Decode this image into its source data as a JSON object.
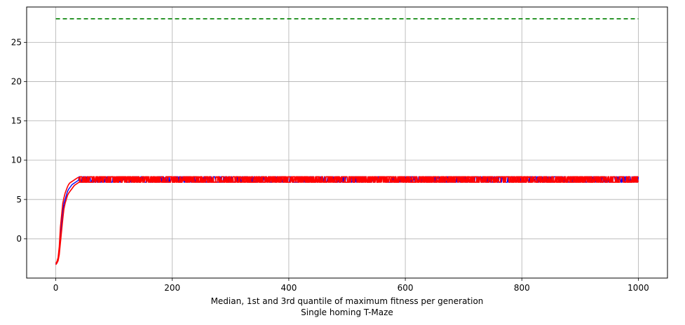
{
  "chart_data": {
    "type": "line",
    "title": "",
    "xlabel": "Median, 1st and 3rd quantile of maximum fitness per generation",
    "xlabel_line2": "Single homing T-Maze",
    "ylabel": "",
    "xlim": [
      -50,
      1050
    ],
    "ylim": [
      -5,
      29.5
    ],
    "xticks": [
      0,
      200,
      400,
      600,
      800,
      1000
    ],
    "yticks": [
      0,
      5,
      10,
      15,
      20,
      25
    ],
    "xtick_labels": [
      "0",
      "200",
      "400",
      "600",
      "800",
      "1000"
    ],
    "ytick_labels": [
      "0",
      "5",
      "10",
      "15",
      "20",
      "25"
    ],
    "grid": true,
    "legend": "none",
    "colors": {
      "reference": "#008000",
      "median": "#0000ff",
      "quantiles": "#ff0000",
      "grid": "#b0b0b0"
    },
    "series": [
      {
        "role": "reference",
        "style": "dashed",
        "x": [
          0,
          1000
        ],
        "values": [
          28,
          28
        ]
      },
      {
        "role": "median",
        "style": "solid",
        "x": [
          0,
          2,
          4,
          6,
          8,
          10,
          12,
          14,
          16,
          18,
          20,
          22,
          24,
          26,
          28,
          30,
          32,
          34,
          36,
          38,
          40,
          45,
          50,
          60,
          80,
          100,
          150,
          200,
          300,
          400,
          500,
          600,
          700,
          800,
          900,
          1000
        ],
        "values": [
          -3.2,
          -3.0,
          -2.6,
          -1.5,
          0.5,
          2.0,
          3.5,
          4.5,
          5.0,
          5.5,
          6.0,
          6.3,
          6.5,
          6.7,
          6.9,
          7.0,
          7.1,
          7.2,
          7.3,
          7.4,
          7.5,
          7.5,
          7.5,
          7.5,
          7.5,
          7.5,
          7.5,
          7.5,
          7.5,
          7.5,
          7.5,
          7.5,
          7.5,
          7.5,
          7.5,
          7.5
        ],
        "oscillation": [
          7.2,
          7.9
        ]
      },
      {
        "role": "first-quantile",
        "style": "solid",
        "x": [
          0,
          2,
          4,
          6,
          8,
          10,
          12,
          14,
          16,
          18,
          20,
          22,
          24,
          26,
          28,
          30,
          32,
          34,
          36,
          38,
          40,
          45,
          50,
          60,
          80,
          100,
          150,
          200,
          300,
          400,
          500,
          600,
          700,
          800,
          900,
          1000
        ],
        "values": [
          -3.3,
          -3.1,
          -2.8,
          -2.0,
          -0.5,
          1.0,
          2.5,
          3.8,
          4.5,
          5.0,
          5.5,
          5.8,
          6.0,
          6.2,
          6.4,
          6.6,
          6.8,
          6.9,
          7.0,
          7.1,
          7.2,
          7.3,
          7.4,
          7.4,
          7.4,
          7.4,
          7.4,
          7.4,
          7.4,
          7.4,
          7.4,
          7.4,
          7.4,
          7.4,
          7.4,
          7.4
        ],
        "oscillation": [
          7.2,
          7.9
        ]
      },
      {
        "role": "third-quantile",
        "style": "solid",
        "x": [
          0,
          2,
          4,
          6,
          8,
          10,
          12,
          14,
          16,
          18,
          20,
          22,
          24,
          26,
          28,
          30,
          32,
          34,
          36,
          38,
          40,
          45,
          50,
          60,
          80,
          100,
          150,
          200,
          300,
          400,
          500,
          600,
          700,
          800,
          900,
          1000
        ],
        "values": [
          -3.1,
          -2.9,
          -2.4,
          -1.0,
          1.5,
          3.0,
          4.5,
          5.2,
          5.8,
          6.2,
          6.6,
          6.9,
          7.1,
          7.2,
          7.3,
          7.4,
          7.5,
          7.6,
          7.7,
          7.8,
          7.8,
          7.8,
          7.8,
          7.8,
          7.8,
          7.8,
          7.8,
          7.8,
          7.8,
          7.8,
          7.8,
          7.8,
          7.8,
          7.8,
          7.8,
          7.8
        ],
        "oscillation": [
          7.2,
          7.9
        ]
      }
    ]
  }
}
